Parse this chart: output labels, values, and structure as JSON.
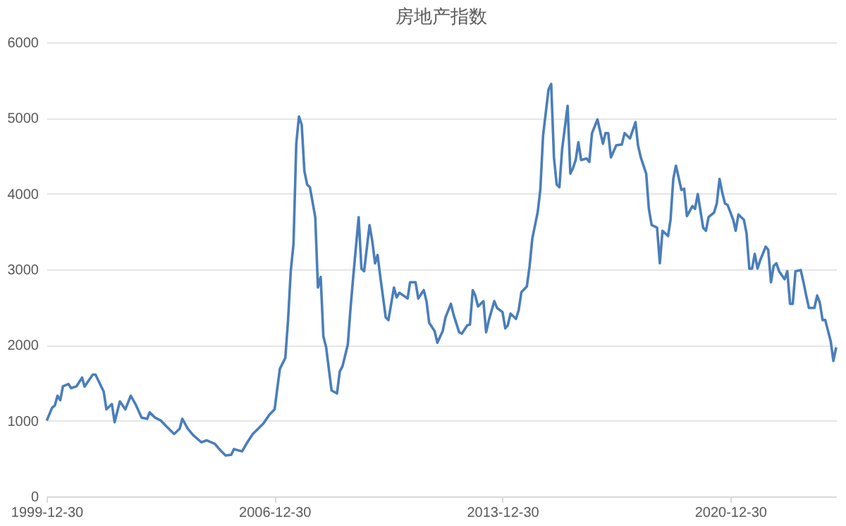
{
  "chart_data": {
    "type": "line",
    "title": "房地产指数",
    "x": [
      "2000-01",
      "2000-03",
      "2000-04",
      "2000-05",
      "2000-06",
      "2000-07",
      "2000-09",
      "2000-10",
      "2000-12",
      "2001-02",
      "2001-03",
      "2001-04",
      "2001-06",
      "2001-07",
      "2001-10",
      "2001-11",
      "2002-01",
      "2002-02",
      "2002-04",
      "2002-06",
      "2002-08",
      "2002-10",
      "2002-12",
      "2003-02",
      "2003-03",
      "2003-05",
      "2003-07",
      "2003-10",
      "2003-12",
      "2004-02",
      "2004-03",
      "2004-05",
      "2004-07",
      "2004-10",
      "2004-12",
      "2005-03",
      "2005-05",
      "2005-07",
      "2005-09",
      "2005-10",
      "2006-01",
      "2006-03",
      "2006-05",
      "2006-07",
      "2006-09",
      "2006-11",
      "2007-01",
      "2007-02",
      "2007-03",
      "2007-05",
      "2007-06",
      "2007-07",
      "2007-08",
      "2007-09",
      "2007-10",
      "2007-11",
      "2007-12",
      "2008-01",
      "2008-02",
      "2008-04",
      "2008-05",
      "2008-06",
      "2008-07",
      "2008-08",
      "2008-10",
      "2008-12",
      "2009-01",
      "2009-02",
      "2009-04",
      "2009-05",
      "2009-06",
      "2009-08",
      "2009-09",
      "2009-10",
      "2009-12",
      "2010-01",
      "2010-02",
      "2010-03",
      "2010-04",
      "2010-06",
      "2010-07",
      "2010-09",
      "2010-10",
      "2010-11",
      "2011-02",
      "2011-03",
      "2011-05",
      "2011-06",
      "2011-08",
      "2011-09",
      "2011-10",
      "2011-12",
      "2012-01",
      "2012-03",
      "2012-04",
      "2012-06",
      "2012-07",
      "2012-09",
      "2012-10",
      "2012-12",
      "2013-01",
      "2013-02",
      "2013-03",
      "2013-04",
      "2013-06",
      "2013-07",
      "2013-08",
      "2013-10",
      "2013-11",
      "2014-01",
      "2014-02",
      "2014-03",
      "2014-04",
      "2014-06",
      "2014-07",
      "2014-08",
      "2014-10",
      "2014-11",
      "2014-12",
      "2015-02",
      "2015-03",
      "2015-04",
      "2015-06",
      "2015-07",
      "2015-08",
      "2015-09",
      "2015-10",
      "2015-11",
      "2016-01",
      "2016-02",
      "2016-03",
      "2016-04",
      "2016-05",
      "2016-06",
      "2016-08",
      "2016-09",
      "2016-10",
      "2016-12",
      "2017-02",
      "2017-03",
      "2017-04",
      "2017-05",
      "2017-07",
      "2017-09",
      "2017-10",
      "2017-12",
      "2018-02",
      "2018-03",
      "2018-04",
      "2018-06",
      "2018-07",
      "2018-08",
      "2018-10",
      "2018-11",
      "2018-12",
      "2019-02",
      "2019-03",
      "2019-04",
      "2019-05",
      "2019-07",
      "2019-08",
      "2019-09",
      "2019-11",
      "2019-12",
      "2020-01",
      "2020-03",
      "2020-04",
      "2020-05",
      "2020-07",
      "2020-08",
      "2020-09",
      "2020-10",
      "2020-11",
      "2020-12",
      "2021-02",
      "2021-03",
      "2021-04",
      "2021-06",
      "2021-07",
      "2021-08",
      "2021-09",
      "2021-10",
      "2021-11",
      "2021-12",
      "2022-02",
      "2022-03",
      "2022-04",
      "2022-05",
      "2022-06",
      "2022-07",
      "2022-09",
      "2022-10",
      "2022-11",
      "2022-12",
      "2023-01",
      "2023-03",
      "2023-04",
      "2023-05",
      "2023-06",
      "2023-08",
      "2023-09",
      "2023-10",
      "2023-11",
      "2023-12",
      "2024-02",
      "2024-03",
      "2024-04"
    ],
    "series": [
      {
        "color": "#4a7ebb",
        "values": [
          1000,
          1170,
          1200,
          1330,
          1270,
          1455,
          1485,
          1430,
          1455,
          1570,
          1450,
          1505,
          1610,
          1610,
          1385,
          1150,
          1220,
          980,
          1255,
          1150,
          1330,
          1200,
          1040,
          1025,
          1110,
          1040,
          1005,
          895,
          825,
          895,
          1025,
          895,
          810,
          715,
          740,
          695,
          610,
          540,
          550,
          625,
          595,
          715,
          825,
          895,
          970,
          1075,
          1150,
          1435,
          1685,
          1830,
          2330,
          2975,
          3335,
          4660,
          5020,
          4910,
          4300,
          4120,
          4085,
          3690,
          2760,
          2900,
          2115,
          1970,
          1400,
          1360,
          1650,
          1720,
          2005,
          2475,
          2900,
          3690,
          3010,
          2975,
          3585,
          3370,
          3080,
          3190,
          2900,
          2365,
          2330,
          2760,
          2630,
          2690,
          2615,
          2830,
          2830,
          2615,
          2725,
          2580,
          2295,
          2185,
          2030,
          2185,
          2365,
          2545,
          2400,
          2170,
          2150,
          2260,
          2270,
          2725,
          2655,
          2510,
          2580,
          2170,
          2330,
          2580,
          2490,
          2435,
          2220,
          2260,
          2415,
          2345,
          2460,
          2700,
          2775,
          3045,
          3405,
          3765,
          4050,
          4765,
          5375,
          5450,
          4480,
          4120,
          4085,
          4590,
          5160,
          4265,
          4335,
          4445,
          4680,
          4445,
          4465,
          4420,
          4800,
          4980,
          4660,
          4800,
          4800,
          4480,
          4640,
          4650,
          4800,
          4730,
          4945,
          4640,
          4480,
          4265,
          3800,
          3585,
          3550,
          3080,
          3510,
          3440,
          3655,
          4195,
          4370,
          4050,
          4065,
          3705,
          3835,
          3800,
          3995,
          3550,
          3510,
          3690,
          3750,
          3870,
          4195,
          4015,
          3870,
          3850,
          3655,
          3510,
          3725,
          3655,
          3475,
          3010,
          3010,
          3205,
          3010,
          3120,
          3300,
          3260,
          2830,
          3045,
          3080,
          2975,
          2870,
          2975,
          2545,
          2545,
          2975,
          2990,
          2830,
          2655,
          2490,
          2490,
          2655,
          2560,
          2330,
          2330,
          2045,
          1790,
          1970
        ]
      }
    ],
    "xlim": [
      "1999-12-30",
      "2024-04"
    ],
    "xticks": [
      "1999-12-30",
      "2006-12-30",
      "2013-12-30",
      "2020-12-30"
    ],
    "ylim": [
      0,
      6000
    ],
    "yticks": [
      0,
      1000,
      2000,
      3000,
      4000,
      5000,
      6000
    ],
    "grid": "y",
    "marker": "none",
    "line_style": "solid"
  }
}
